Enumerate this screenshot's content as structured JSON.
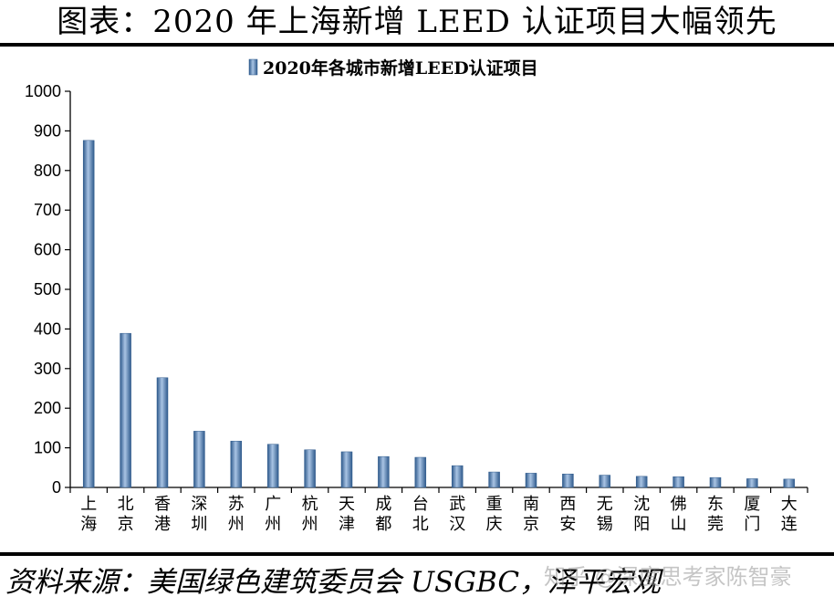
{
  "header": {
    "title": "图表：2020 年上海新增 LEED 认证项目大幅领先"
  },
  "footer": {
    "source": "资料来源：美国绿色建筑委员会 USGBC，泽平宏观",
    "watermark": "知乎 @深度思考家陈智豪"
  },
  "chart_data": {
    "type": "bar",
    "categories": [
      "上海",
      "北京",
      "香港",
      "深圳",
      "苏州",
      "广州",
      "杭州",
      "天津",
      "成都",
      "台北",
      "武汉",
      "重庆",
      "南京",
      "西安",
      "无锡",
      "沈阳",
      "佛山",
      "东莞",
      "厦门",
      "大连"
    ],
    "series": [
      {
        "name": "2020年各城市新增LEED认证项目",
        "values": [
          876,
          389,
          277,
          142,
          117,
          109,
          95,
          90,
          78,
          76,
          55,
          39,
          36,
          34,
          31,
          28,
          27,
          25,
          22,
          21
        ]
      }
    ],
    "yticks": [
      "0",
      "100",
      "200",
      "300",
      "400",
      "500",
      "600",
      "700",
      "800",
      "900",
      "1000"
    ],
    "ylim": [
      0,
      1000
    ],
    "legend_position": "top",
    "grid": false,
    "bar_color": "#4f81bd"
  }
}
